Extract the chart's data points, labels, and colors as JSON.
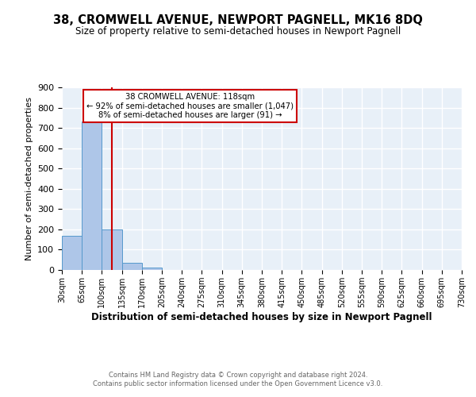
{
  "title": "38, CROMWELL AVENUE, NEWPORT PAGNELL, MK16 8DQ",
  "subtitle": "Size of property relative to semi-detached houses in Newport Pagnell",
  "xlabel": "Distribution of semi-detached houses by size in Newport Pagnell",
  "ylabel": "Number of semi-detached properties",
  "bin_edges": [
    30,
    65,
    100,
    135,
    170,
    205,
    240,
    275,
    310,
    345,
    380,
    415,
    450,
    485,
    520,
    555,
    590,
    625,
    660,
    695,
    730
  ],
  "bar_heights": [
    170,
    730,
    200,
    35,
    10,
    0,
    0,
    0,
    0,
    0,
    0,
    0,
    0,
    0,
    0,
    0,
    0,
    0,
    0,
    0
  ],
  "bar_color": "#aec6e8",
  "bar_edge_color": "#5599cc",
  "property_size": 118,
  "annotation_line1": "38 CROMWELL AVENUE: 118sqm",
  "annotation_line2": "← 92% of semi-detached houses are smaller (1,047)",
  "annotation_line3": "8% of semi-detached houses are larger (91) →",
  "annotation_box_color": "#cc0000",
  "vline_color": "#cc0000",
  "ylim": [
    0,
    900
  ],
  "yticks": [
    0,
    100,
    200,
    300,
    400,
    500,
    600,
    700,
    800,
    900
  ],
  "background_color": "#e8f0f8",
  "grid_color": "#ffffff",
  "footer_line1": "Contains HM Land Registry data © Crown copyright and database right 2024.",
  "footer_line2": "Contains public sector information licensed under the Open Government Licence v3.0."
}
